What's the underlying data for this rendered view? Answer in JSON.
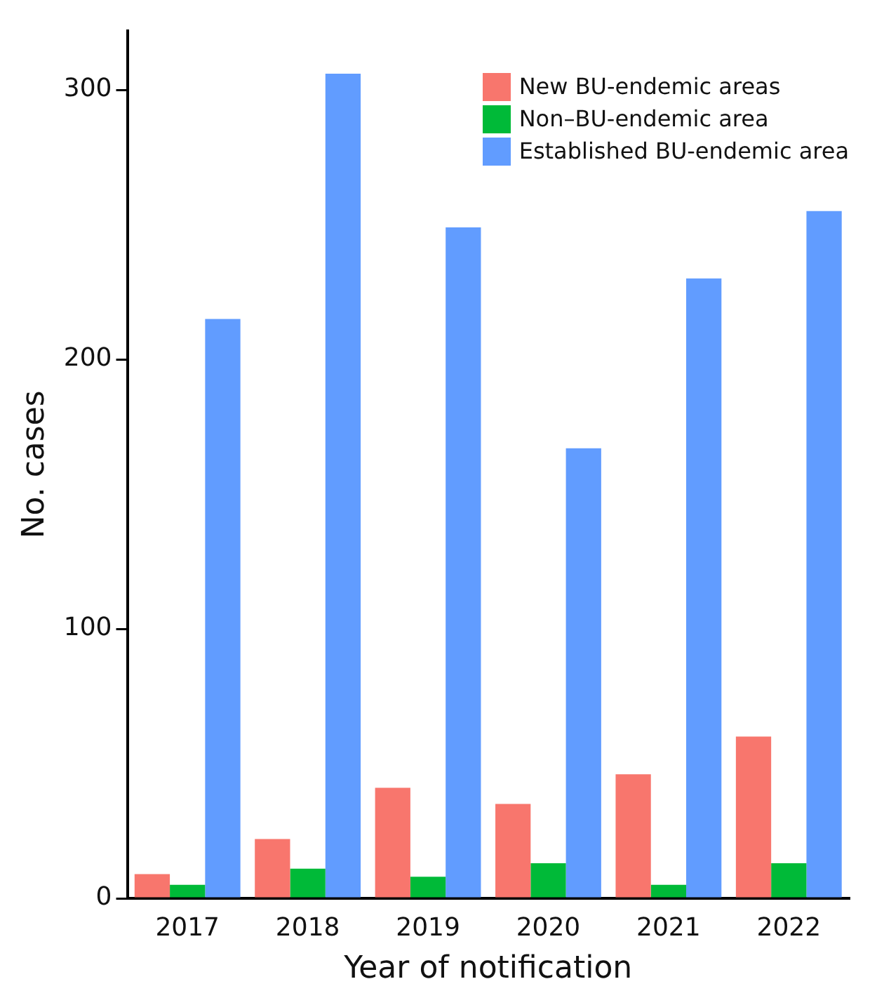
{
  "chart_data": {
    "type": "bar",
    "xlabel": "Year of notification",
    "ylabel": "No. cases",
    "categories": [
      "2017",
      "2018",
      "2019",
      "2020",
      "2021",
      "2022"
    ],
    "series": [
      {
        "name": "New BU-endemic areas",
        "color": "#f8766d",
        "values": [
          9,
          22,
          41,
          35,
          46,
          60
        ]
      },
      {
        "name": "Non–BU-endemic area",
        "color": "#00ba38",
        "values": [
          5,
          11,
          8,
          13,
          5,
          13
        ]
      },
      {
        "name": "Established BU-endemic area",
        "color": "#619cff",
        "values": [
          215,
          306,
          249,
          167,
          230,
          255
        ]
      }
    ],
    "ylim": [
      0,
      322
    ],
    "yticks": [
      0,
      100,
      200,
      300
    ],
    "grid": false,
    "legend": "top right"
  }
}
